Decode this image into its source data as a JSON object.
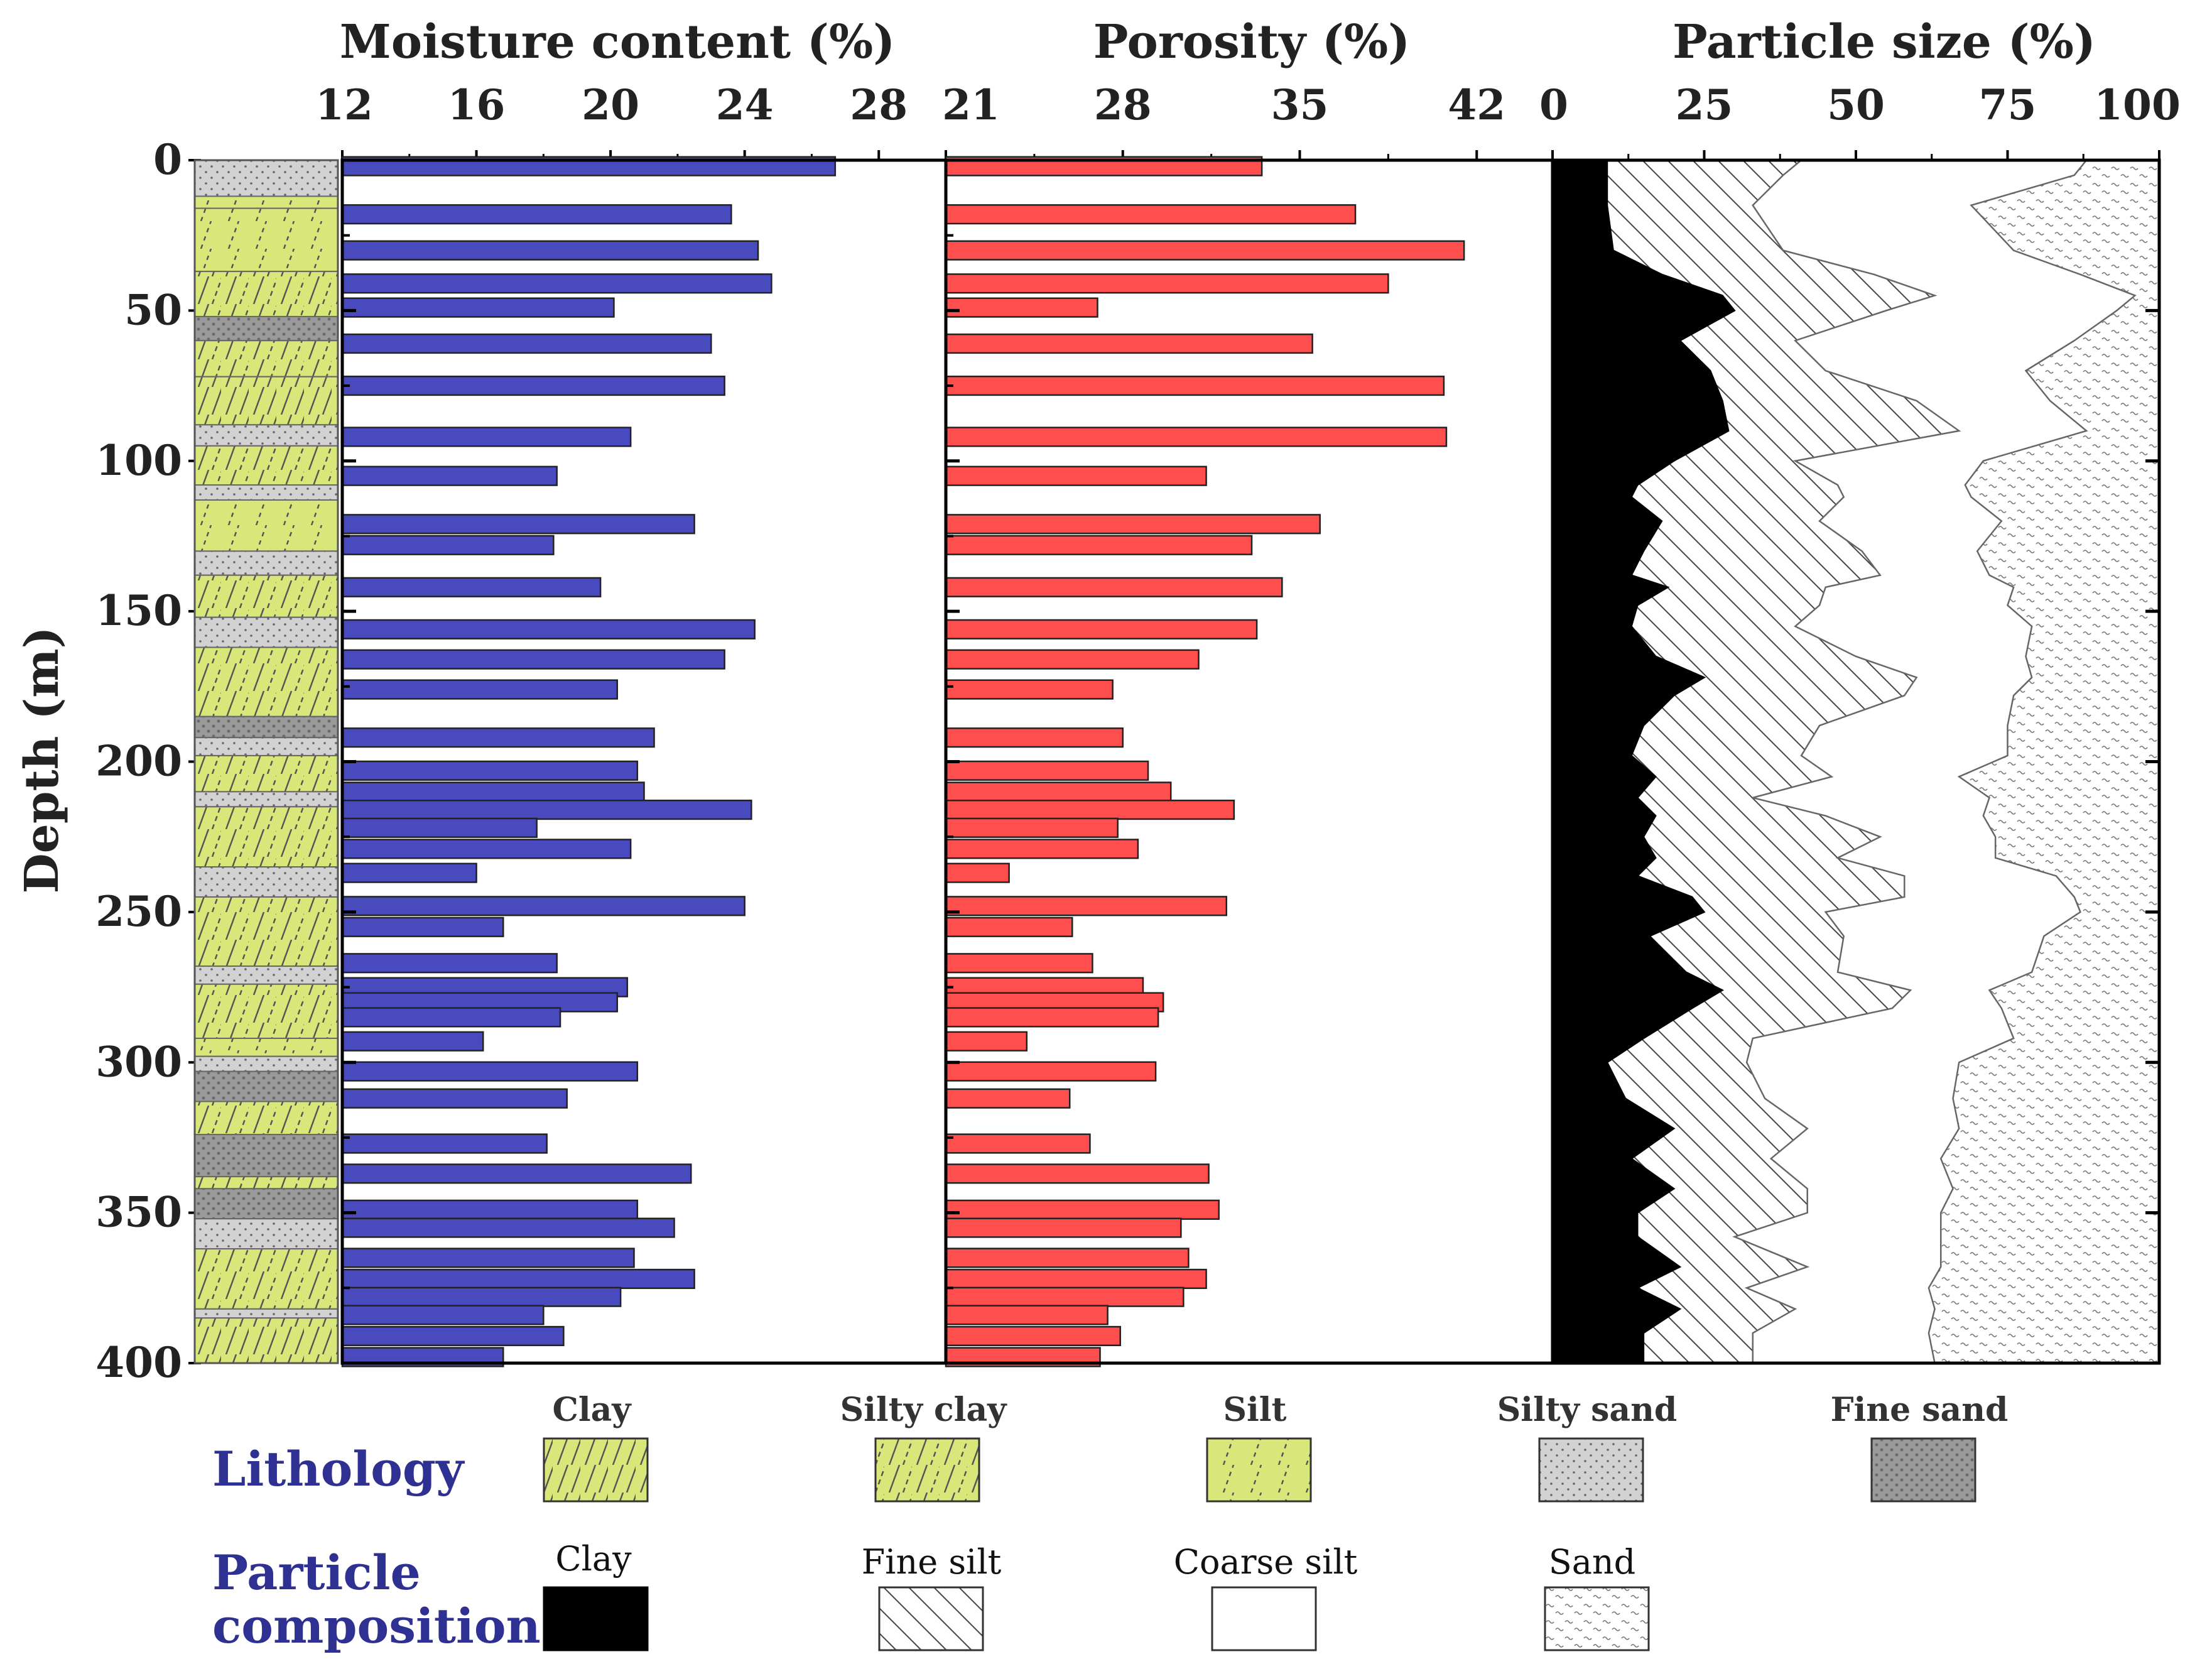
{
  "colors": {
    "moisture": "#4a4abf",
    "porosity": "#ff4e4e",
    "clay_litho": "#d9e67a",
    "silty_sand": "#d0d0d0",
    "fine_sand": "#9a9a9a",
    "legend_heading": "#2e3192"
  },
  "chart_data": [
    {
      "type": "bar",
      "title": "Moisture content (%)",
      "xlim": [
        12,
        30
      ],
      "x_ticks": [
        "12",
        "16",
        "20",
        "24",
        "28"
      ],
      "orientation": "horizontal",
      "depths": [
        2,
        18,
        30,
        41,
        49,
        61,
        75,
        92,
        105,
        121,
        128,
        142,
        156,
        166,
        176,
        192,
        203,
        210,
        216,
        222,
        229,
        237,
        248,
        255,
        267,
        275,
        280,
        285,
        293,
        303,
        312,
        327,
        337,
        349,
        355,
        365,
        372,
        378,
        384,
        391,
        398
      ],
      "values": [
        26.7,
        23.6,
        24.4,
        24.8,
        20.1,
        23.0,
        23.4,
        20.6,
        18.4,
        22.5,
        18.3,
        19.7,
        24.3,
        23.4,
        20.2,
        21.3,
        20.8,
        21.0,
        24.2,
        17.8,
        20.6,
        16.0,
        24.0,
        16.8,
        18.4,
        20.5,
        20.2,
        18.5,
        16.2,
        20.8,
        18.7,
        18.1,
        22.4,
        20.8,
        21.9,
        20.7,
        22.5,
        20.3,
        18.0,
        18.6,
        16.8
      ]
    },
    {
      "type": "bar",
      "title": "Porosity (%)",
      "xlim": [
        21,
        45
      ],
      "x_ticks": [
        "21",
        "28",
        "35",
        "42"
      ],
      "orientation": "horizontal",
      "depths": [
        2,
        18,
        30,
        41,
        49,
        61,
        75,
        92,
        105,
        121,
        128,
        142,
        156,
        166,
        176,
        192,
        203,
        210,
        216,
        222,
        229,
        237,
        248,
        255,
        267,
        275,
        280,
        285,
        293,
        303,
        312,
        327,
        337,
        349,
        355,
        365,
        372,
        378,
        384,
        391,
        398
      ],
      "values": [
        33.5,
        37.2,
        41.5,
        38.5,
        27.0,
        35.5,
        40.7,
        40.8,
        31.3,
        35.8,
        33.1,
        34.3,
        33.3,
        31.0,
        27.6,
        28.0,
        29.0,
        29.9,
        32.4,
        27.8,
        28.6,
        23.5,
        32.1,
        26.0,
        26.8,
        28.8,
        29.6,
        29.4,
        24.2,
        29.3,
        25.9,
        26.7,
        31.4,
        31.8,
        30.3,
        30.6,
        31.3,
        30.4,
        27.4,
        27.9,
        27.1
      ]
    },
    {
      "type": "area",
      "title": "Particle size (%)",
      "xlim": [
        0,
        100
      ],
      "x_ticks": [
        "0",
        "25",
        "50",
        "75",
        "100"
      ],
      "depths": [
        0,
        5,
        15,
        30,
        38,
        45,
        50,
        60,
        70,
        80,
        90,
        100,
        108,
        112,
        120,
        130,
        138,
        142,
        148,
        155,
        165,
        172,
        178,
        188,
        198,
        205,
        212,
        218,
        225,
        232,
        238,
        245,
        250,
        258,
        270,
        276,
        282,
        292,
        300,
        312,
        322,
        332,
        342,
        350,
        358,
        368,
        375,
        382,
        390,
        400
      ],
      "series": [
        {
          "name": "Clay",
          "values": [
            9,
            9,
            9,
            10,
            18,
            28,
            30,
            21,
            26,
            28,
            29,
            20,
            14,
            13,
            18,
            15,
            13,
            19,
            14,
            13,
            17,
            25,
            20,
            15,
            13,
            17,
            14,
            17,
            15,
            17,
            14,
            23,
            25,
            16,
            22,
            28,
            23,
            15,
            9,
            12,
            20,
            13,
            20,
            14,
            14,
            21,
            14,
            21,
            15,
            15
          ]
        },
        {
          "name": "Fine silt",
          "values": [
            41,
            38,
            33,
            38,
            53,
            63,
            55,
            40,
            45,
            60,
            67,
            40,
            47,
            48,
            44,
            51,
            54,
            45,
            44,
            40,
            50,
            60,
            58,
            44,
            41,
            46,
            33,
            45,
            54,
            47,
            58,
            58,
            45,
            48,
            47,
            59,
            56,
            33,
            32,
            35,
            42,
            36,
            42,
            42,
            30,
            42,
            32,
            40,
            33,
            33
          ]
        },
        {
          "name": "Coarse silt",
          "values": [
            88,
            86,
            69,
            76,
            87,
            96,
            93,
            86,
            78,
            82,
            88,
            71,
            68,
            69,
            74,
            70,
            72,
            76,
            75,
            79,
            78,
            79,
            76,
            75,
            75,
            67,
            72,
            71,
            73,
            73,
            83,
            86,
            87,
            81,
            79,
            72,
            74,
            76,
            67,
            66,
            67,
            64,
            66,
            64,
            64,
            64,
            62,
            63,
            62,
            63
          ]
        },
        {
          "name": "Sand",
          "values": [
            100,
            100,
            100,
            100,
            100,
            100,
            100,
            100,
            100,
            100,
            100,
            100,
            100,
            100,
            100,
            100,
            100,
            100,
            100,
            100,
            100,
            100,
            100,
            100,
            100,
            100,
            100,
            100,
            100,
            100,
            100,
            100,
            100,
            100,
            100,
            100,
            100,
            100,
            100,
            100,
            100,
            100,
            100,
            100,
            100,
            100,
            100,
            100,
            100,
            100
          ]
        }
      ]
    }
  ],
  "depth_axis": {
    "label": "Depth (m)",
    "ylim": [
      0,
      400
    ],
    "ticks": [
      "0",
      "50",
      "100",
      "150",
      "200",
      "250",
      "300",
      "350",
      "400"
    ]
  },
  "lithology_column": [
    {
      "from": 0,
      "to": 12,
      "type": "Silty sand"
    },
    {
      "from": 12,
      "to": 16,
      "type": "Silt"
    },
    {
      "from": 16,
      "to": 37,
      "type": "Silt"
    },
    {
      "from": 37,
      "to": 52,
      "type": "Silty clay"
    },
    {
      "from": 52,
      "to": 60,
      "type": "Fine sand"
    },
    {
      "from": 60,
      "to": 72,
      "type": "Silty clay"
    },
    {
      "from": 72,
      "to": 88,
      "type": "Clay"
    },
    {
      "from": 88,
      "to": 95,
      "type": "Silty sand"
    },
    {
      "from": 95,
      "to": 108,
      "type": "Silty clay"
    },
    {
      "from": 108,
      "to": 113,
      "type": "Silty sand"
    },
    {
      "from": 113,
      "to": 130,
      "type": "Silt"
    },
    {
      "from": 130,
      "to": 138,
      "type": "Silty sand"
    },
    {
      "from": 138,
      "to": 152,
      "type": "Silty clay"
    },
    {
      "from": 152,
      "to": 162,
      "type": "Silty sand"
    },
    {
      "from": 162,
      "to": 185,
      "type": "Silty clay"
    },
    {
      "from": 185,
      "to": 192,
      "type": "Fine sand"
    },
    {
      "from": 192,
      "to": 198,
      "type": "Silty sand"
    },
    {
      "from": 198,
      "to": 210,
      "type": "Silty clay"
    },
    {
      "from": 210,
      "to": 215,
      "type": "Silty sand"
    },
    {
      "from": 215,
      "to": 235,
      "type": "Silty clay"
    },
    {
      "from": 235,
      "to": 245,
      "type": "Silty sand"
    },
    {
      "from": 245,
      "to": 268,
      "type": "Silty clay"
    },
    {
      "from": 268,
      "to": 274,
      "type": "Silty sand"
    },
    {
      "from": 274,
      "to": 292,
      "type": "Silty clay"
    },
    {
      "from": 292,
      "to": 298,
      "type": "Silt"
    },
    {
      "from": 298,
      "to": 303,
      "type": "Silty sand"
    },
    {
      "from": 303,
      "to": 313,
      "type": "Fine sand"
    },
    {
      "from": 313,
      "to": 324,
      "type": "Silty clay"
    },
    {
      "from": 324,
      "to": 338,
      "type": "Fine sand"
    },
    {
      "from": 338,
      "to": 342,
      "type": "Silty clay"
    },
    {
      "from": 342,
      "to": 352,
      "type": "Fine sand"
    },
    {
      "from": 352,
      "to": 362,
      "type": "Silty sand"
    },
    {
      "from": 362,
      "to": 382,
      "type": "Silty clay"
    },
    {
      "from": 382,
      "to": 385,
      "type": "Silty sand"
    },
    {
      "from": 385,
      "to": 400,
      "type": "Clay"
    }
  ],
  "legend": {
    "lithology_heading": "Lithology",
    "lithology_items": [
      "Clay",
      "Silty clay",
      "Silt",
      "Silty sand",
      "Fine sand"
    ],
    "particle_heading_1": "Particle",
    "particle_heading_2": "composition",
    "particle_items": [
      "Clay",
      "Fine silt",
      "Coarse silt",
      "Sand"
    ]
  }
}
